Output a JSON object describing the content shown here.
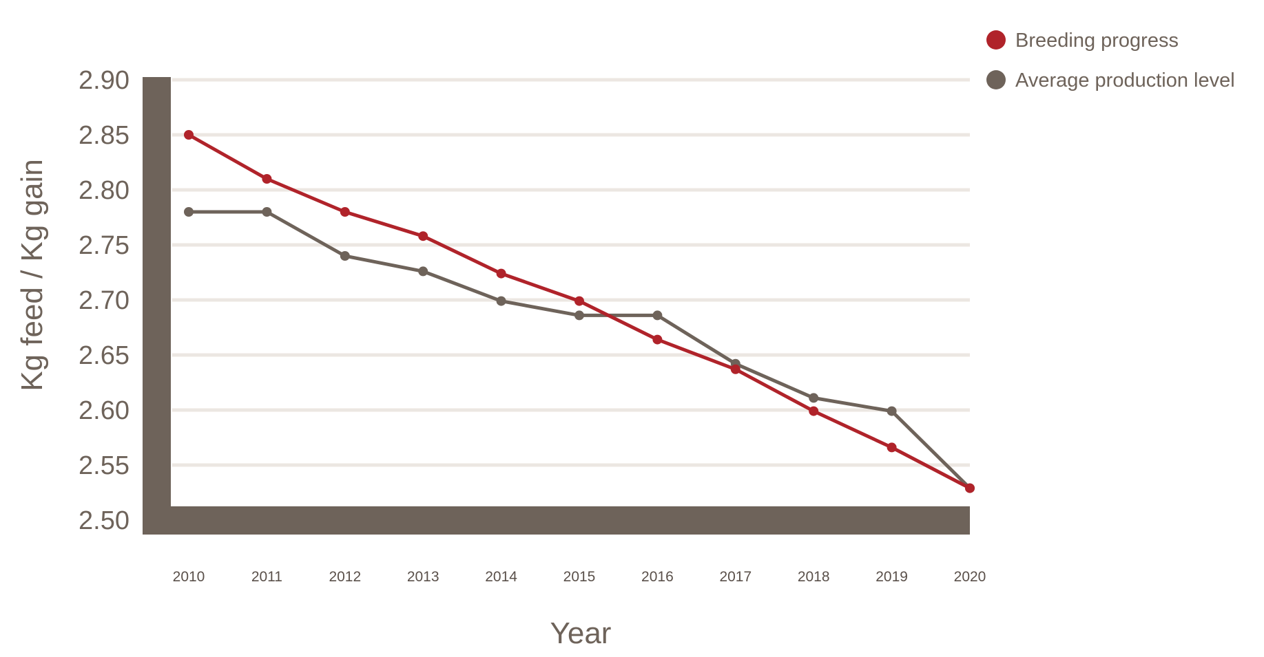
{
  "chart_data": {
    "type": "line",
    "xlabel": "Year",
    "ylabel": "Kg feed / Kg gain",
    "categories": [
      "2010",
      "2011",
      "2012",
      "2013",
      "2014",
      "2015",
      "2016",
      "2017",
      "2018",
      "2019",
      "2020"
    ],
    "y_ticks": [
      "2.90",
      "2.85",
      "2.80",
      "2.75",
      "2.70",
      "2.65",
      "2.60",
      "2.55",
      "2.50"
    ],
    "ylim": [
      2.5,
      2.9
    ],
    "grid": true,
    "legend_position": "top-right",
    "series": [
      {
        "name": "Breeding progress",
        "color": "#b0232a",
        "values": [
          2.85,
          2.81,
          2.78,
          2.758,
          2.724,
          2.699,
          2.664,
          2.637,
          2.599,
          2.566,
          2.529
        ]
      },
      {
        "name": "Average production level",
        "color": "#6e635a",
        "values": [
          2.78,
          2.78,
          2.74,
          2.726,
          2.699,
          2.686,
          2.686,
          2.642,
          2.611,
          2.599,
          2.529
        ]
      }
    ],
    "colors": {
      "axis_frame": "#6e635a",
      "grid": "#ece7e2",
      "text": "#6e635a"
    }
  }
}
